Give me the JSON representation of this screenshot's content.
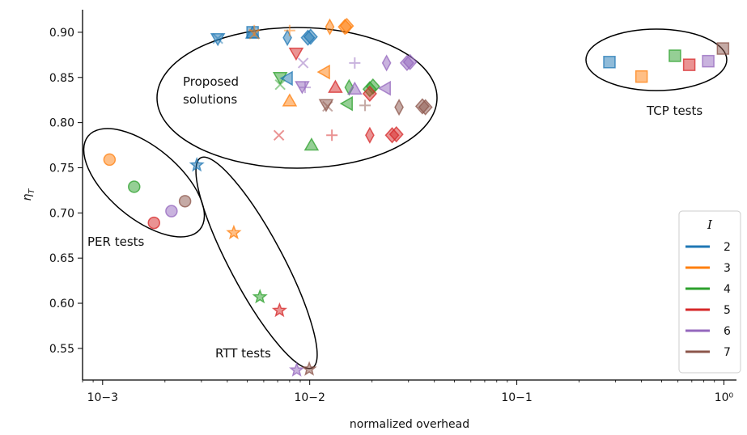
{
  "chart_data": {
    "type": "scatter",
    "xlabel": "normalized overhead",
    "ylabel": "η_T",
    "xscale": "log",
    "xlim": [
      0.0008,
      1.15
    ],
    "ylim": [
      0.515,
      0.925
    ],
    "x_ticks": [
      {
        "value": 0.001,
        "label": "10−3"
      },
      {
        "value": 0.01,
        "label": "10−2"
      },
      {
        "value": 0.1,
        "label": "10−1"
      },
      {
        "value": 1,
        "label": "10⁰"
      }
    ],
    "y_ticks": [
      {
        "value": 0.55,
        "label": "0.55"
      },
      {
        "value": 0.6,
        "label": "0.60"
      },
      {
        "value": 0.65,
        "label": "0.65"
      },
      {
        "value": 0.7,
        "label": "0.70"
      },
      {
        "value": 0.75,
        "label": "0.75"
      },
      {
        "value": 0.8,
        "label": "0.80"
      },
      {
        "value": 0.85,
        "label": "0.85"
      },
      {
        "value": 0.9,
        "label": "0.90"
      }
    ],
    "grid": false,
    "legend": {
      "title": "I",
      "placement": "lower-right",
      "entries": [
        {
          "label": "2",
          "color": "#1f77b4"
        },
        {
          "label": "3",
          "color": "#ff7f0e"
        },
        {
          "label": "4",
          "color": "#2ca02c"
        },
        {
          "label": "5",
          "color": "#d62728"
        },
        {
          "label": "6",
          "color": "#9467bd"
        },
        {
          "label": "7",
          "color": "#8c564b"
        }
      ]
    },
    "colors": {
      "2": "#1f77b4",
      "3": "#ff7f0e",
      "4": "#2ca02c",
      "5": "#d62728",
      "6": "#9467bd",
      "7": "#8c564b"
    },
    "annotations": [
      {
        "text": "Proposed solutions",
        "lines": [
          "Proposed",
          "solutions"
        ]
      },
      {
        "text": "TCP tests",
        "lines": [
          "TCP tests"
        ]
      },
      {
        "text": "PER tests",
        "lines": [
          "PER tests"
        ]
      },
      {
        "text": "RTT tests",
        "lines": [
          "RTT tests"
        ]
      }
    ],
    "series": [
      {
        "group": "TCP tests",
        "marker": "square",
        "points": [
          {
            "x": 0.28,
            "y": 0.867,
            "I": 2
          },
          {
            "x": 0.4,
            "y": 0.851,
            "I": 3
          },
          {
            "x": 0.58,
            "y": 0.874,
            "I": 4
          },
          {
            "x": 0.68,
            "y": 0.864,
            "I": 5
          },
          {
            "x": 0.84,
            "y": 0.868,
            "I": 6
          },
          {
            "x": 0.99,
            "y": 0.882,
            "I": 7
          }
        ]
      },
      {
        "group": "PER tests",
        "marker": "circle",
        "points": [
          {
            "x": 0.00108,
            "y": 0.759,
            "I": 3
          },
          {
            "x": 0.00142,
            "y": 0.729,
            "I": 4
          },
          {
            "x": 0.00177,
            "y": 0.689,
            "I": 5
          },
          {
            "x": 0.00215,
            "y": 0.702,
            "I": 6
          },
          {
            "x": 0.0025,
            "y": 0.713,
            "I": 7
          }
        ]
      },
      {
        "group": "RTT tests",
        "marker": "star",
        "points": [
          {
            "x": 0.00285,
            "y": 0.753,
            "I": 2
          },
          {
            "x": 0.0043,
            "y": 0.678,
            "I": 3
          },
          {
            "x": 0.00575,
            "y": 0.607,
            "I": 4
          },
          {
            "x": 0.00715,
            "y": 0.592,
            "I": 5
          },
          {
            "x": 0.00865,
            "y": 0.526,
            "I": 6
          },
          {
            "x": 0.00995,
            "y": 0.527,
            "I": 7
          }
        ]
      },
      {
        "group": "Proposed solutions",
        "marker": "mixed",
        "points": [
          {
            "x": 0.0036,
            "y": 0.893,
            "I": 2,
            "marker": "tri_down"
          },
          {
            "x": 0.0036,
            "y": 0.893,
            "I": 2,
            "marker": "x"
          },
          {
            "x": 0.0053,
            "y": 0.9,
            "I": 2,
            "marker": "square"
          },
          {
            "x": 0.0053,
            "y": 0.899,
            "I": 2,
            "marker": "triangle_up"
          },
          {
            "x": 0.0054,
            "y": 0.902,
            "I": 3,
            "marker": "plus"
          },
          {
            "x": 0.0054,
            "y": 0.898,
            "I": 3,
            "marker": "x"
          },
          {
            "x": 0.0078,
            "y": 0.894,
            "I": 2,
            "marker": "thin_diamond"
          },
          {
            "x": 0.008,
            "y": 0.902,
            "I": 3,
            "marker": "plus"
          },
          {
            "x": 0.0098,
            "y": 0.894,
            "I": 2,
            "marker": "diamond"
          },
          {
            "x": 0.0101,
            "y": 0.895,
            "I": 2,
            "marker": "diamond"
          },
          {
            "x": 0.0125,
            "y": 0.906,
            "I": 3,
            "marker": "thin_diamond"
          },
          {
            "x": 0.0148,
            "y": 0.906,
            "I": 3,
            "marker": "diamond"
          },
          {
            "x": 0.0151,
            "y": 0.907,
            "I": 3,
            "marker": "diamond"
          },
          {
            "x": 0.0086,
            "y": 0.877,
            "I": 5,
            "marker": "tri_down"
          },
          {
            "x": 0.0093,
            "y": 0.866,
            "I": 6,
            "marker": "x"
          },
          {
            "x": 0.0165,
            "y": 0.866,
            "I": 6,
            "marker": "plus"
          },
          {
            "x": 0.0235,
            "y": 0.866,
            "I": 6,
            "marker": "thin_diamond"
          },
          {
            "x": 0.0295,
            "y": 0.866,
            "I": 6,
            "marker": "diamond"
          },
          {
            "x": 0.0305,
            "y": 0.867,
            "I": 6,
            "marker": "diamond"
          },
          {
            "x": 0.0072,
            "y": 0.85,
            "I": 4,
            "marker": "tri_down"
          },
          {
            "x": 0.0078,
            "y": 0.849,
            "I": 2,
            "marker": "tri_left"
          },
          {
            "x": 0.0072,
            "y": 0.842,
            "I": 4,
            "marker": "x"
          },
          {
            "x": 0.0118,
            "y": 0.856,
            "I": 3,
            "marker": "tri_left"
          },
          {
            "x": 0.0092,
            "y": 0.84,
            "I": 6,
            "marker": "tri_down"
          },
          {
            "x": 0.0095,
            "y": 0.839,
            "I": 6,
            "marker": "plus"
          },
          {
            "x": 0.0133,
            "y": 0.839,
            "I": 5,
            "marker": "triangle_up"
          },
          {
            "x": 0.0155,
            "y": 0.839,
            "I": 4,
            "marker": "thin_diamond"
          },
          {
            "x": 0.0165,
            "y": 0.837,
            "I": 6,
            "marker": "triangle_up"
          },
          {
            "x": 0.0195,
            "y": 0.837,
            "I": 4,
            "marker": "diamond"
          },
          {
            "x": 0.0202,
            "y": 0.84,
            "I": 4,
            "marker": "diamond"
          },
          {
            "x": 0.0195,
            "y": 0.832,
            "I": 5,
            "marker": "diamond"
          },
          {
            "x": 0.0232,
            "y": 0.838,
            "I": 6,
            "marker": "tri_left"
          },
          {
            "x": 0.008,
            "y": 0.824,
            "I": 3,
            "marker": "triangle_up"
          },
          {
            "x": 0.012,
            "y": 0.82,
            "I": 7,
            "marker": "tri_down"
          },
          {
            "x": 0.0122,
            "y": 0.818,
            "I": 7,
            "marker": "x"
          },
          {
            "x": 0.0152,
            "y": 0.821,
            "I": 4,
            "marker": "tri_left"
          },
          {
            "x": 0.0185,
            "y": 0.819,
            "I": 7,
            "marker": "plus"
          },
          {
            "x": 0.027,
            "y": 0.817,
            "I": 7,
            "marker": "thin_diamond"
          },
          {
            "x": 0.035,
            "y": 0.818,
            "I": 7,
            "marker": "diamond"
          },
          {
            "x": 0.0362,
            "y": 0.817,
            "I": 7,
            "marker": "diamond"
          },
          {
            "x": 0.0071,
            "y": 0.786,
            "I": 5,
            "marker": "x"
          },
          {
            "x": 0.0128,
            "y": 0.786,
            "I": 5,
            "marker": "plus"
          },
          {
            "x": 0.0102,
            "y": 0.775,
            "I": 4,
            "marker": "triangle_up"
          },
          {
            "x": 0.0195,
            "y": 0.786,
            "I": 5,
            "marker": "thin_diamond"
          },
          {
            "x": 0.025,
            "y": 0.786,
            "I": 5,
            "marker": "diamond"
          },
          {
            "x": 0.0262,
            "y": 0.787,
            "I": 5,
            "marker": "diamond"
          }
        ]
      }
    ]
  }
}
